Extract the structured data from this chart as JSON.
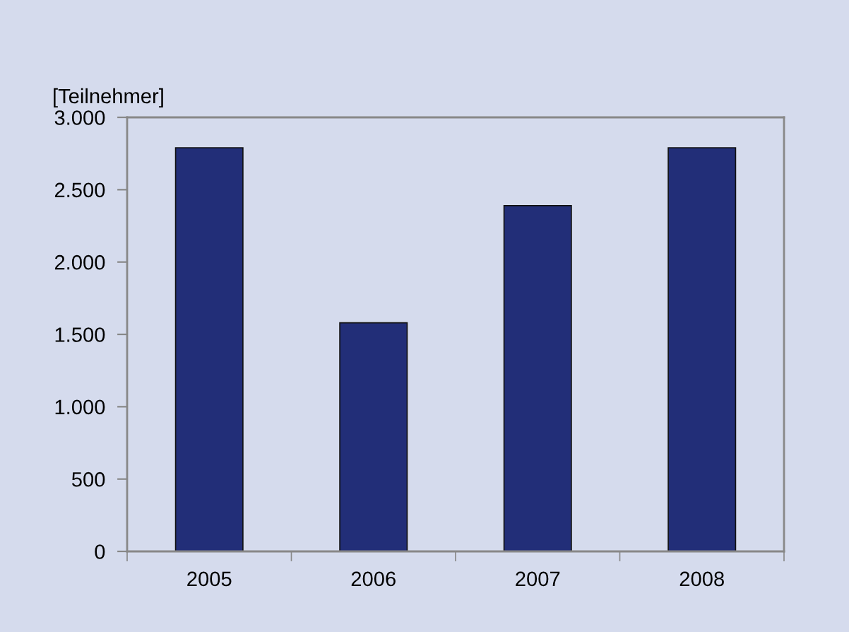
{
  "chart_data": {
    "type": "bar",
    "ylabel": "[Teilnehmer]",
    "categories": [
      "2005",
      "2006",
      "2007",
      "2008"
    ],
    "values": [
      2790,
      1580,
      2390,
      2790
    ],
    "color": "#222e78",
    "ylim": [
      0,
      3000
    ],
    "yticks": [
      0,
      500,
      {
        "value": 1000,
        "label": "1.000"
      },
      {
        "value": 1500,
        "label": "1.500"
      },
      {
        "value": 2000,
        "label": "2.000"
      },
      {
        "value": 2500,
        "label": "2.500"
      },
      {
        "value": 3000,
        "label": "3.000"
      }
    ],
    "grid": false,
    "legend": false
  }
}
